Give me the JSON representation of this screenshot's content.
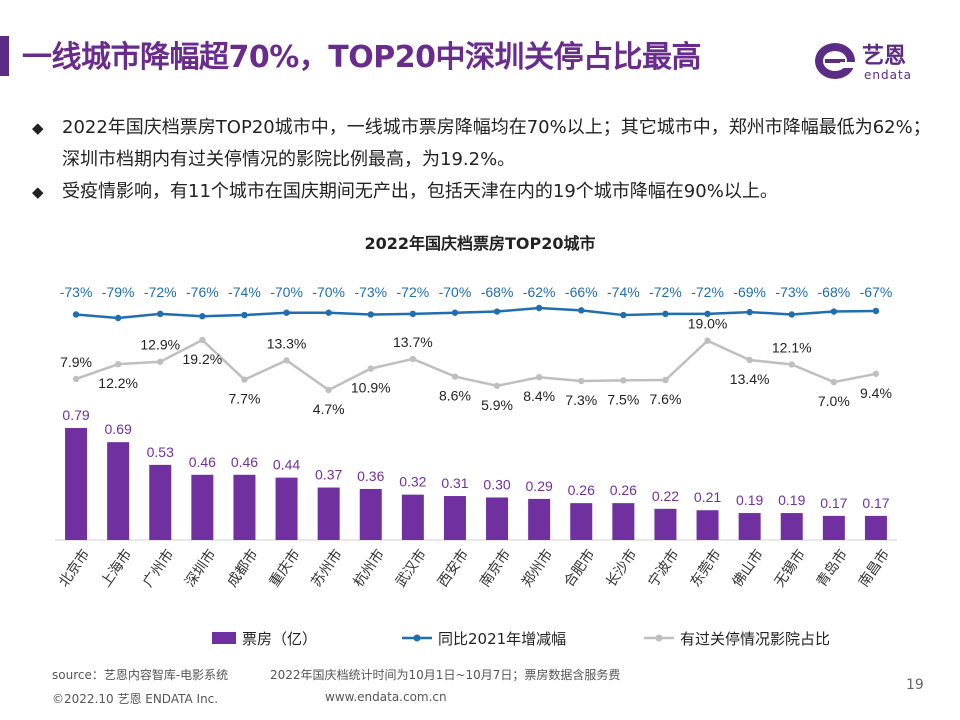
{
  "header": {
    "title": "一线城市降幅超70%，TOP20中深圳关停占比最高",
    "logo_cn": "艺恩",
    "logo_en": "endata"
  },
  "bullets": [
    {
      "icon": "◆",
      "text": "2022年国庆档票房TOP20城市中，一线城市票房降幅均在70%以上；其它城市中，郑州市降幅最低为62%；深圳市档期内有过关停情况的影院比例最高，为19.2%。"
    },
    {
      "icon": "◆",
      "text": "受疫情影响，有11个城市在国庆期间无产出，包括天津在内的19个城市降幅在90%以上。"
    }
  ],
  "colors": {
    "brand": "#5b2c83",
    "bar": "#7030a0",
    "yoy_line": "#1f6eb0",
    "closure_line": "#bfbfbf"
  },
  "chart_data": {
    "type": "bar",
    "title": "2022年国庆档票房TOP20城市",
    "categories": [
      "北京市",
      "上海市",
      "广州市",
      "深圳市",
      "成都市",
      "重庆市",
      "苏州市",
      "杭州市",
      "武汉市",
      "西安市",
      "南京市",
      "郑州市",
      "合肥市",
      "长沙市",
      "宁波市",
      "东莞市",
      "佛山市",
      "无锡市",
      "青岛市",
      "南昌市"
    ],
    "series": [
      {
        "name": "票房（亿）",
        "type": "bar",
        "values": [
          0.79,
          0.69,
          0.53,
          0.46,
          0.46,
          0.44,
          0.37,
          0.36,
          0.32,
          0.31,
          0.3,
          0.29,
          0.26,
          0.26,
          0.22,
          0.21,
          0.19,
          0.19,
          0.17,
          0.17
        ]
      },
      {
        "name": "同比2021年增减幅",
        "type": "line",
        "unit": "%",
        "values": [
          -73,
          -79,
          -72,
          -76,
          -74,
          -70,
          -70,
          -73,
          -72,
          -70,
          -68,
          -62,
          -66,
          -74,
          -72,
          -72,
          -69,
          -73,
          -68,
          -67
        ]
      },
      {
        "name": "有过关停情况影院占比",
        "type": "line",
        "unit": "%",
        "values": [
          7.9,
          12.2,
          12.9,
          19.2,
          7.7,
          13.3,
          4.7,
          10.9,
          13.7,
          8.6,
          5.9,
          8.4,
          7.3,
          7.5,
          7.6,
          19.0,
          13.4,
          12.1,
          7.0,
          9.4
        ]
      }
    ],
    "bar_labels": [
      "0.79",
      "0.69",
      "0.53",
      "0.46",
      "0.46",
      "0.44",
      "0.37",
      "0.36",
      "0.32",
      "0.31",
      "0.30",
      "0.29",
      "0.26",
      "0.26",
      "0.22",
      "0.21",
      "0.19",
      "0.19",
      "0.17",
      "0.17"
    ],
    "yoy_labels": [
      "-73%",
      "-79%",
      "-72%",
      "-76%",
      "-74%",
      "-70%",
      "-70%",
      "-73%",
      "-72%",
      "-70%",
      "-68%",
      "-62%",
      "-66%",
      "-74%",
      "-72%",
      "-72%",
      "-69%",
      "-73%",
      "-68%",
      "-67%"
    ],
    "closure_labels": [
      "7.9%",
      "12.2%",
      "12.9%",
      "19.2%",
      "7.7%",
      "13.3%",
      "4.7%",
      "10.9%",
      "13.7%",
      "8.6%",
      "5.9%",
      "8.4%",
      "7.3%",
      "7.5%",
      "7.6%",
      "19.0%",
      "13.4%",
      "12.1%",
      "7.0%",
      "9.4%"
    ],
    "closure_label_side": [
      "above",
      "below",
      "above",
      "below",
      "below",
      "above",
      "below",
      "below",
      "above",
      "below",
      "below",
      "below",
      "below",
      "below",
      "below",
      "above",
      "below",
      "above",
      "below",
      "below"
    ],
    "legend": [
      "票房（亿）",
      "同比2021年增减幅",
      "有过关停情况影院占比"
    ],
    "legend_position": "bottom"
  },
  "footer": {
    "source": "source：艺恩内容智库-电影系统",
    "note": "2022年国庆档统计时间为10月1日~10月7日；票房数据含服务费",
    "copyright": "©2022.10 艺恩 ENDATA Inc.",
    "website": "www.endata.com.cn",
    "page": "19"
  }
}
